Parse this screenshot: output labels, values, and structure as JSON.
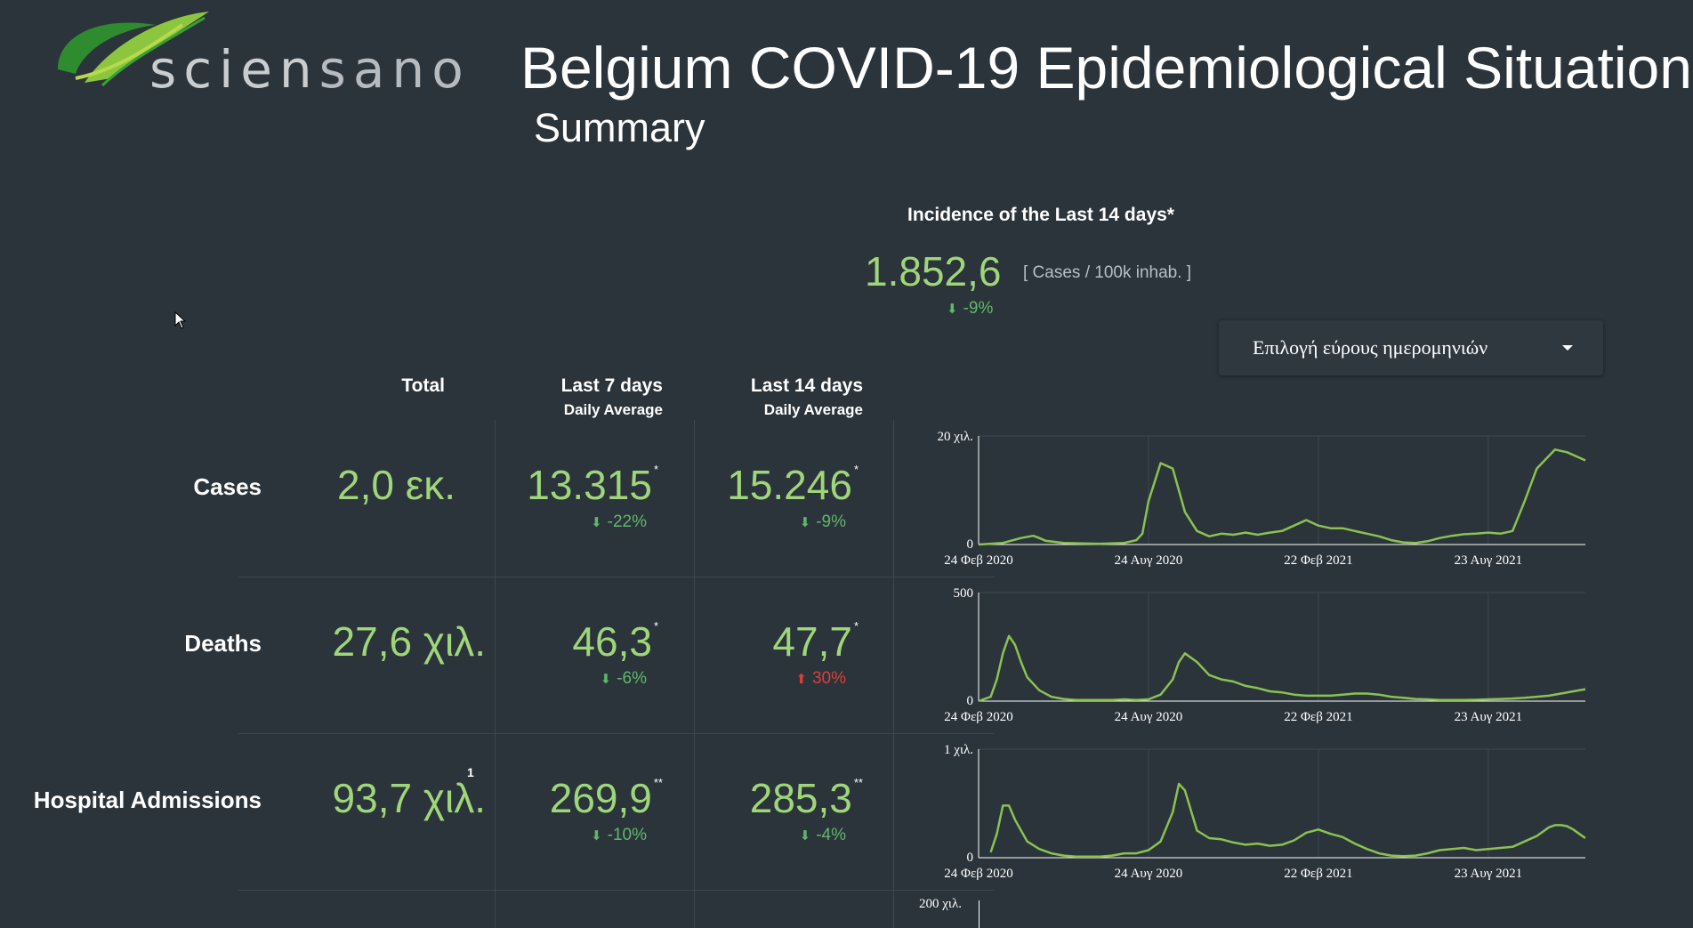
{
  "logo": {
    "text_a": "scien",
    "text_b": "sano"
  },
  "header": {
    "title": "Belgium COVID-19 Epidemiological Situation",
    "subtitle": "Summary"
  },
  "incidence": {
    "label": "Incidence of the Last 14 days*",
    "value": "1.852,6",
    "unit": "[ Cases / 100k inhab. ]",
    "change": "-9%",
    "direction": "down"
  },
  "date_range_select": {
    "label": "Επιλογή εύρους ημερομηνιών",
    "icon": "chevron-down-icon"
  },
  "columns": {
    "total": "Total",
    "last7": "Last 7 days",
    "last7_sub": "Daily Average",
    "last14": "Last 14 days",
    "last14_sub": "Daily Average"
  },
  "rows": [
    {
      "label": "Cases",
      "total": "2,0 εκ.",
      "total_mark": "",
      "last7": "13.315",
      "last7_mark": "*",
      "last7_change": "-22%",
      "last7_dir": "down",
      "last14": "15.246",
      "last14_mark": "*",
      "last14_change": "-9%",
      "last14_dir": "down"
    },
    {
      "label": "Deaths",
      "total": "27,6 χιλ.",
      "total_mark": "",
      "last7": "46,3",
      "last7_mark": "*",
      "last7_change": "-6%",
      "last7_dir": "down",
      "last14": "47,7",
      "last14_mark": "*",
      "last14_change": "30%",
      "last14_dir": "up"
    },
    {
      "label": "Hospital Admissions",
      "total": "93,7 χιλ.",
      "total_mark": "1",
      "last7": "269,9",
      "last7_mark": "**",
      "last7_change": "-10%",
      "last7_dir": "down",
      "last14": "285,3",
      "last14_mark": "**",
      "last14_change": "-4%",
      "last14_dir": "down"
    }
  ],
  "chart_data": [
    {
      "type": "line",
      "series_color": "#8cc152",
      "x_ticks": [
        "24 Φεβ 2020",
        "24 Αυγ 2020",
        "22 Φεβ 2021",
        "23 Αυγ 2021"
      ],
      "y_ticks": [
        "0",
        "20 χιλ."
      ],
      "ylim": [
        0,
        20000
      ],
      "x": [
        0,
        4,
        7,
        9,
        10,
        11,
        14,
        17,
        20,
        24,
        26,
        27,
        28,
        30,
        32,
        34,
        36,
        38,
        40,
        42,
        44,
        46,
        48,
        50,
        52,
        54,
        56,
        58,
        60,
        62,
        64,
        66,
        68,
        70,
        72,
        74,
        76,
        78,
        80,
        82,
        84,
        86,
        88,
        90,
        92,
        95,
        97,
        99,
        100
      ],
      "values": [
        0,
        300,
        1200,
        1600,
        1200,
        700,
        300,
        200,
        150,
        300,
        800,
        2000,
        8000,
        15000,
        14000,
        6000,
        2500,
        1500,
        2000,
        1800,
        2200,
        1800,
        2200,
        2500,
        3500,
        4500,
        3500,
        3000,
        3000,
        2500,
        2000,
        1500,
        800,
        400,
        300,
        600,
        1200,
        1600,
        1900,
        2000,
        2200,
        2000,
        2500,
        8000,
        14000,
        17500,
        17000,
        16000,
        15500
      ]
    },
    {
      "type": "line",
      "series_color": "#8cc152",
      "x_ticks": [
        "24 Φεβ 2020",
        "24 Αυγ 2020",
        "22 Φεβ 2021",
        "23 Αυγ 2021"
      ],
      "y_ticks": [
        "0",
        "500"
      ],
      "ylim": [
        0,
        500
      ],
      "x": [
        0,
        2,
        3,
        4,
        5,
        6,
        7,
        8,
        10,
        12,
        14,
        16,
        18,
        20,
        22,
        24,
        26,
        28,
        30,
        32,
        33,
        34,
        36,
        38,
        40,
        42,
        44,
        46,
        48,
        50,
        52,
        54,
        56,
        58,
        60,
        62,
        64,
        66,
        68,
        70,
        72,
        74,
        76,
        78,
        80,
        82,
        84,
        86,
        88,
        90,
        92,
        94,
        96,
        98,
        100
      ],
      "values": [
        0,
        20,
        100,
        220,
        300,
        260,
        180,
        110,
        50,
        20,
        10,
        5,
        5,
        5,
        5,
        8,
        5,
        8,
        30,
        100,
        180,
        220,
        180,
        120,
        100,
        90,
        70,
        60,
        45,
        40,
        30,
        25,
        25,
        25,
        30,
        35,
        35,
        30,
        20,
        15,
        10,
        8,
        5,
        5,
        5,
        6,
        8,
        10,
        12,
        15,
        20,
        25,
        35,
        45,
        55
      ]
    },
    {
      "type": "line",
      "series_color": "#8cc152",
      "x_ticks": [
        "24 Φεβ 2020",
        "24 Αυγ 2020",
        "22 Φεβ 2021",
        "23 Αυγ 2021"
      ],
      "y_ticks": [
        "0",
        "1 χιλ."
      ],
      "ylim": [
        0,
        1000
      ],
      "x": [
        2,
        3,
        4,
        5,
        6,
        8,
        10,
        12,
        14,
        16,
        18,
        20,
        22,
        24,
        26,
        28,
        30,
        32,
        33,
        34,
        36,
        38,
        40,
        42,
        44,
        46,
        48,
        50,
        52,
        54,
        56,
        58,
        60,
        62,
        64,
        66,
        68,
        70,
        72,
        74,
        76,
        78,
        80,
        82,
        84,
        86,
        88,
        90,
        92,
        94,
        95,
        96,
        97,
        98,
        99,
        100
      ],
      "values": [
        50,
        220,
        480,
        480,
        350,
        150,
        80,
        40,
        20,
        10,
        10,
        10,
        20,
        40,
        40,
        70,
        150,
        420,
        680,
        620,
        250,
        180,
        170,
        140,
        120,
        130,
        110,
        120,
        160,
        230,
        260,
        220,
        190,
        130,
        80,
        40,
        20,
        15,
        20,
        40,
        70,
        80,
        90,
        70,
        80,
        90,
        100,
        150,
        200,
        280,
        300,
        300,
        290,
        260,
        220,
        180
      ]
    }
  ],
  "next_chart_label": "200 χιλ."
}
